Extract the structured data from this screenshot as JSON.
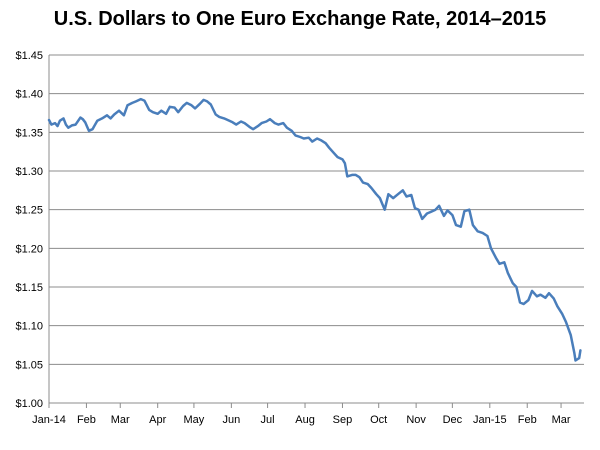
{
  "chart_data": {
    "type": "line",
    "title": "U.S. Dollars to One Euro Exchange Rate, 2014–2015",
    "xlabel": "",
    "ylabel": "",
    "grid": "horizontal",
    "legend": "none",
    "line_color": "#4a7ebb",
    "x_ticks": [
      "Jan-14",
      "Feb",
      "Mar",
      "Apr",
      "May",
      "Jun",
      "Jul",
      "Aug",
      "Sep",
      "Oct",
      "Nov",
      "Dec",
      "Jan-15",
      "Feb",
      "Mar"
    ],
    "y_ticks": [
      "$1.00",
      "$1.05",
      "$1.10",
      "$1.15",
      "$1.20",
      "$1.25",
      "$1.30",
      "$1.35",
      "$1.40",
      "$1.45"
    ],
    "ylim": [
      1.0,
      1.45
    ],
    "x_start": "2014-01-01",
    "x_end": "2015-03-20",
    "series": [
      {
        "points": [
          [
            "2014-01-01",
            1.366
          ],
          [
            "2014-01-03",
            1.36
          ],
          [
            "2014-01-06",
            1.362
          ],
          [
            "2014-01-08",
            1.358
          ],
          [
            "2014-01-10",
            1.365
          ],
          [
            "2014-01-13",
            1.368
          ],
          [
            "2014-01-15",
            1.36
          ],
          [
            "2014-01-17",
            1.356
          ],
          [
            "2014-01-20",
            1.359
          ],
          [
            "2014-01-23",
            1.36
          ],
          [
            "2014-01-27",
            1.369
          ],
          [
            "2014-01-29",
            1.367
          ],
          [
            "2014-01-31",
            1.363
          ],
          [
            "2014-02-03",
            1.352
          ],
          [
            "2014-02-06",
            1.354
          ],
          [
            "2014-02-10",
            1.365
          ],
          [
            "2014-02-14",
            1.368
          ],
          [
            "2014-02-18",
            1.372
          ],
          [
            "2014-02-21",
            1.368
          ],
          [
            "2014-02-24",
            1.373
          ],
          [
            "2014-02-28",
            1.378
          ],
          [
            "2014-03-04",
            1.372
          ],
          [
            "2014-03-07",
            1.385
          ],
          [
            "2014-03-11",
            1.388
          ],
          [
            "2014-03-14",
            1.39
          ],
          [
            "2014-03-18",
            1.393
          ],
          [
            "2014-03-21",
            1.391
          ],
          [
            "2014-03-25",
            1.379
          ],
          [
            "2014-03-28",
            1.376
          ],
          [
            "2014-04-01",
            1.374
          ],
          [
            "2014-04-04",
            1.378
          ],
          [
            "2014-04-08",
            1.374
          ],
          [
            "2014-04-11",
            1.383
          ],
          [
            "2014-04-15",
            1.382
          ],
          [
            "2014-04-18",
            1.376
          ],
          [
            "2014-04-22",
            1.384
          ],
          [
            "2014-04-25",
            1.388
          ],
          [
            "2014-04-29",
            1.385
          ],
          [
            "2014-05-02",
            1.381
          ],
          [
            "2014-05-06",
            1.387
          ],
          [
            "2014-05-09",
            1.392
          ],
          [
            "2014-05-12",
            1.39
          ],
          [
            "2014-05-15",
            1.386
          ],
          [
            "2014-05-19",
            1.373
          ],
          [
            "2014-05-22",
            1.37
          ],
          [
            "2014-05-26",
            1.368
          ],
          [
            "2014-05-29",
            1.366
          ],
          [
            "2014-06-02",
            1.363
          ],
          [
            "2014-06-05",
            1.36
          ],
          [
            "2014-06-09",
            1.364
          ],
          [
            "2014-06-12",
            1.362
          ],
          [
            "2014-06-16",
            1.357
          ],
          [
            "2014-06-19",
            1.354
          ],
          [
            "2014-06-23",
            1.358
          ],
          [
            "2014-06-26",
            1.362
          ],
          [
            "2014-06-30",
            1.364
          ],
          [
            "2014-07-03",
            1.367
          ],
          [
            "2014-07-07",
            1.362
          ],
          [
            "2014-07-10",
            1.36
          ],
          [
            "2014-07-14",
            1.362
          ],
          [
            "2014-07-17",
            1.356
          ],
          [
            "2014-07-21",
            1.352
          ],
          [
            "2014-07-24",
            1.346
          ],
          [
            "2014-07-28",
            1.344
          ],
          [
            "2014-07-31",
            1.342
          ],
          [
            "2014-08-04",
            1.343
          ],
          [
            "2014-08-07",
            1.338
          ],
          [
            "2014-08-11",
            1.342
          ],
          [
            "2014-08-14",
            1.34
          ],
          [
            "2014-08-18",
            1.336
          ],
          [
            "2014-08-21",
            1.33
          ],
          [
            "2014-08-25",
            1.323
          ],
          [
            "2014-08-28",
            1.318
          ],
          [
            "2014-09-01",
            1.315
          ],
          [
            "2014-09-03",
            1.31
          ],
          [
            "2014-09-05",
            1.293
          ],
          [
            "2014-09-09",
            1.295
          ],
          [
            "2014-09-12",
            1.295
          ],
          [
            "2014-09-15",
            1.292
          ],
          [
            "2014-09-18",
            1.285
          ],
          [
            "2014-09-22",
            1.283
          ],
          [
            "2014-09-25",
            1.278
          ],
          [
            "2014-09-29",
            1.27
          ],
          [
            "2014-10-02",
            1.265
          ],
          [
            "2014-10-06",
            1.25
          ],
          [
            "2014-10-09",
            1.27
          ],
          [
            "2014-10-13",
            1.265
          ],
          [
            "2014-10-17",
            1.27
          ],
          [
            "2014-10-21",
            1.275
          ],
          [
            "2014-10-24",
            1.267
          ],
          [
            "2014-10-28",
            1.269
          ],
          [
            "2014-10-31",
            1.252
          ],
          [
            "2014-11-03",
            1.25
          ],
          [
            "2014-11-06",
            1.238
          ],
          [
            "2014-11-10",
            1.245
          ],
          [
            "2014-11-13",
            1.247
          ],
          [
            "2014-11-17",
            1.25
          ],
          [
            "2014-11-20",
            1.255
          ],
          [
            "2014-11-24",
            1.242
          ],
          [
            "2014-11-27",
            1.249
          ],
          [
            "2014-12-01",
            1.243
          ],
          [
            "2014-12-04",
            1.23
          ],
          [
            "2014-12-08",
            1.228
          ],
          [
            "2014-12-11",
            1.248
          ],
          [
            "2014-12-15",
            1.25
          ],
          [
            "2014-12-18",
            1.23
          ],
          [
            "2014-12-22",
            1.222
          ],
          [
            "2014-12-26",
            1.22
          ],
          [
            "2014-12-30",
            1.216
          ],
          [
            "2015-01-02",
            1.2
          ],
          [
            "2015-01-06",
            1.188
          ],
          [
            "2015-01-09",
            1.18
          ],
          [
            "2015-01-13",
            1.182
          ],
          [
            "2015-01-16",
            1.168
          ],
          [
            "2015-01-20",
            1.155
          ],
          [
            "2015-01-23",
            1.15
          ],
          [
            "2015-01-26",
            1.13
          ],
          [
            "2015-01-29",
            1.128
          ],
          [
            "2015-02-02",
            1.133
          ],
          [
            "2015-02-05",
            1.145
          ],
          [
            "2015-02-09",
            1.138
          ],
          [
            "2015-02-12",
            1.14
          ],
          [
            "2015-02-16",
            1.136
          ],
          [
            "2015-02-19",
            1.142
          ],
          [
            "2015-02-23",
            1.135
          ],
          [
            "2015-02-26",
            1.125
          ],
          [
            "2015-03-02",
            1.115
          ],
          [
            "2015-03-05",
            1.105
          ],
          [
            "2015-03-09",
            1.088
          ],
          [
            "2015-03-12",
            1.065
          ],
          [
            "2015-03-13",
            1.055
          ],
          [
            "2015-03-16",
            1.058
          ],
          [
            "2015-03-17",
            1.068
          ]
        ]
      }
    ]
  }
}
